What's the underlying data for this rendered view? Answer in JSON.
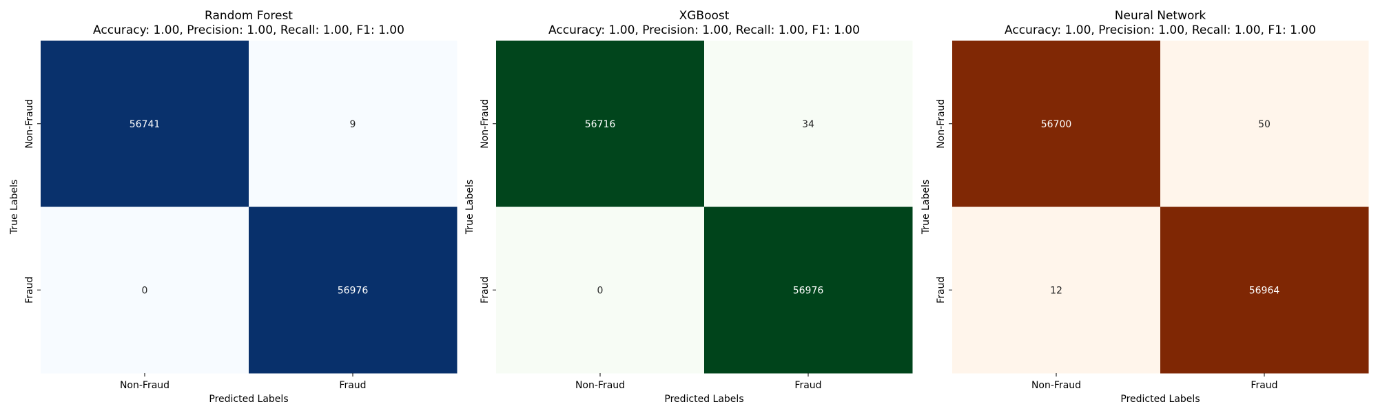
{
  "chart_data": [
    {
      "type": "heatmap",
      "title": "Random Forest",
      "subtitle": "Accuracy: 1.00, Precision: 1.00, Recall: 1.00, F1: 1.00",
      "xlabel": "Predicted Labels",
      "ylabel": "True Labels",
      "x_categories": [
        "Non-Fraud",
        "Fraud"
      ],
      "y_categories": [
        "Non-Fraud",
        "Fraud"
      ],
      "values": [
        [
          56741,
          9
        ],
        [
          0,
          56976
        ]
      ],
      "colormap": "Blues",
      "colors": {
        "low": "#f7fbff",
        "high": "#08306b"
      }
    },
    {
      "type": "heatmap",
      "title": "XGBoost",
      "subtitle": "Accuracy: 1.00, Precision: 1.00, Recall: 1.00, F1: 1.00",
      "xlabel": "Predicted Labels",
      "ylabel": "True Labels",
      "x_categories": [
        "Non-Fraud",
        "Fraud"
      ],
      "y_categories": [
        "Non-Fraud",
        "Fraud"
      ],
      "values": [
        [
          56716,
          34
        ],
        [
          0,
          56976
        ]
      ],
      "colormap": "Greens",
      "colors": {
        "low": "#f7fcf5",
        "high": "#00441b"
      }
    },
    {
      "type": "heatmap",
      "title": "Neural Network",
      "subtitle": "Accuracy: 1.00, Precision: 1.00, Recall: 1.00, F1: 1.00",
      "xlabel": "Predicted Labels",
      "ylabel": "True Labels",
      "x_categories": [
        "Non-Fraud",
        "Fraud"
      ],
      "y_categories": [
        "Non-Fraud",
        "Fraud"
      ],
      "values": [
        [
          56700,
          50
        ],
        [
          12,
          56964
        ]
      ],
      "colormap": "Oranges",
      "colors": {
        "low": "#fff5eb",
        "high": "#7f2704"
      }
    }
  ]
}
